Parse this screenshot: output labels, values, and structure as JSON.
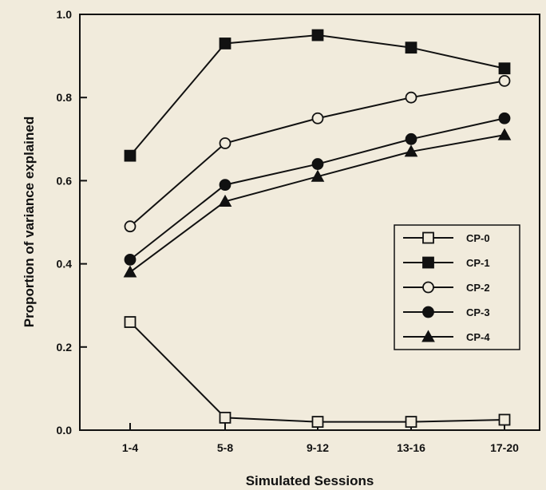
{
  "chart_data": {
    "type": "line",
    "title": "",
    "xlabel": "Simulated Sessions",
    "ylabel": "Proportion of variance explained",
    "categories": [
      "1-4",
      "5-8",
      "9-12",
      "13-16",
      "17-20"
    ],
    "ylim": [
      0.0,
      1.0
    ],
    "yticks": [
      "0.0",
      "0.2",
      "0.4",
      "0.6",
      "0.8",
      "1.0"
    ],
    "grid": false,
    "legend_position": "center-right",
    "series": [
      {
        "name": "CP-0",
        "marker": "square-open",
        "values": [
          0.26,
          0.03,
          0.02,
          0.02,
          0.025
        ]
      },
      {
        "name": "CP-1",
        "marker": "square-filled",
        "values": [
          0.66,
          0.93,
          0.95,
          0.92,
          0.87
        ]
      },
      {
        "name": "CP-2",
        "marker": "circle-open",
        "values": [
          0.49,
          0.69,
          0.75,
          0.8,
          0.84
        ]
      },
      {
        "name": "CP-3",
        "marker": "circle-filled",
        "values": [
          0.41,
          0.59,
          0.64,
          0.7,
          0.75
        ]
      },
      {
        "name": "CP-4",
        "marker": "triangle-filled",
        "values": [
          0.38,
          0.55,
          0.61,
          0.67,
          0.71
        ]
      }
    ]
  }
}
